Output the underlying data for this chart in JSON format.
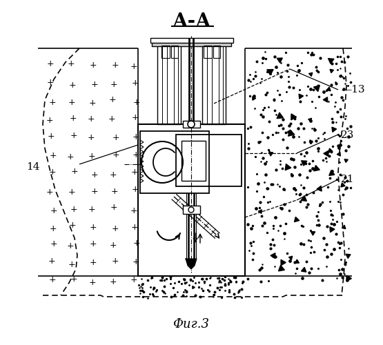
{
  "title": "А-А",
  "caption": "Фиг.3",
  "bg_color": "#ffffff",
  "figsize": [
    5.55,
    5.0
  ],
  "dpi": 100
}
